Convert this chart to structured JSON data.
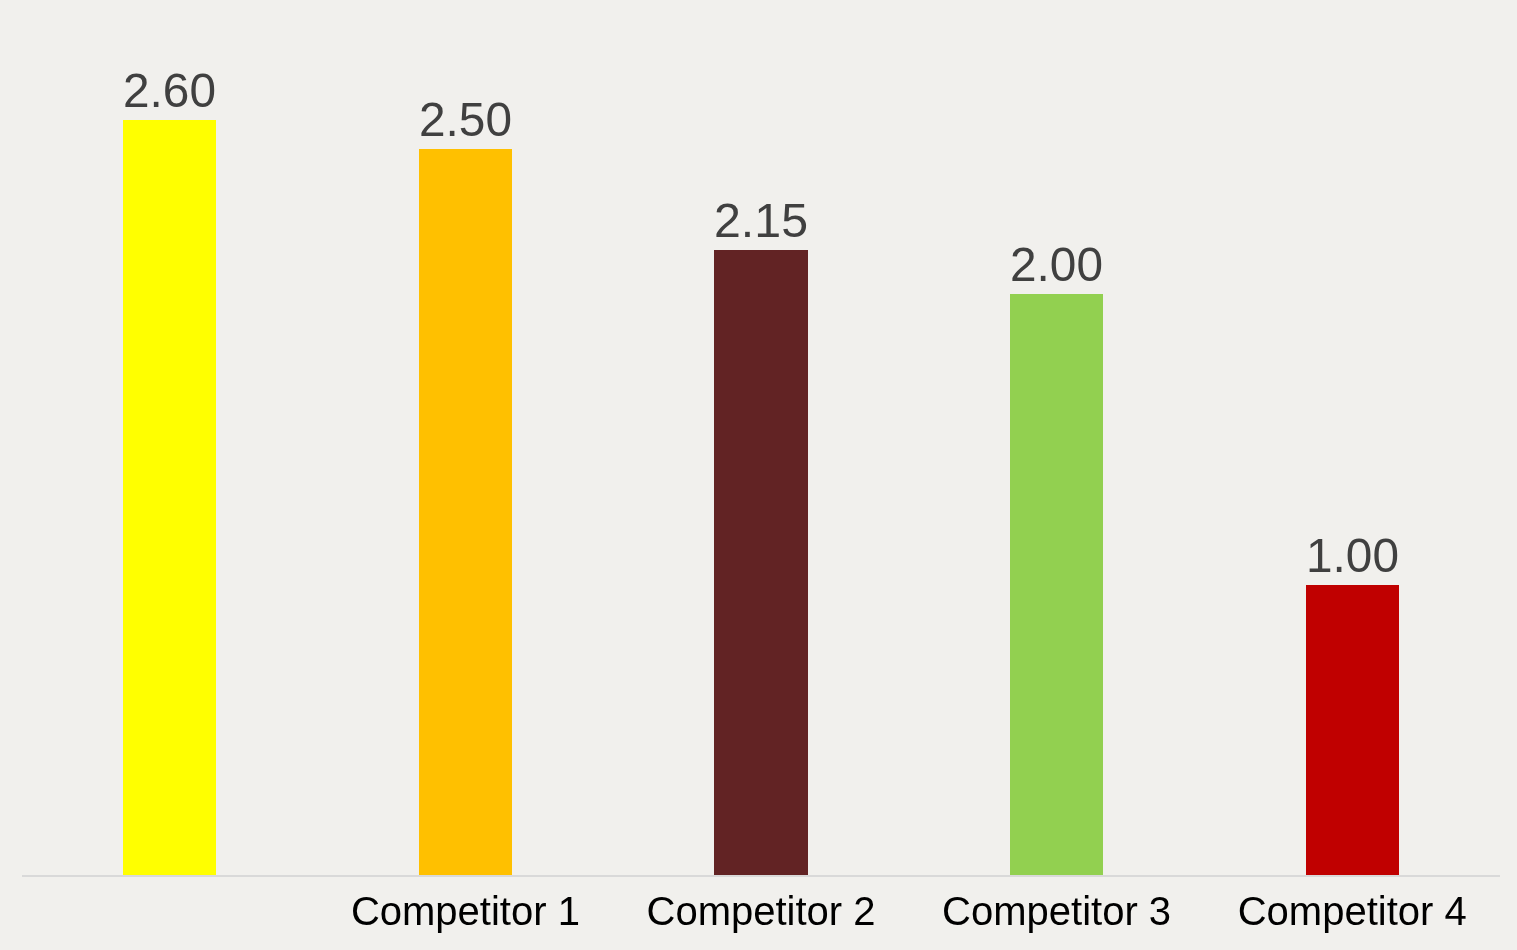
{
  "chart_data": {
    "type": "bar",
    "categories": [
      null,
      "Competitor 1",
      "Competitor 2",
      "Competitor 3",
      "Competitor 4"
    ],
    "values": [
      2.6,
      2.5,
      2.15,
      2.0,
      1.0
    ],
    "colors": [
      "#ffff00",
      "#ffc000",
      "#622324",
      "#92d050",
      "#c00000"
    ],
    "value_labels": [
      "2.60",
      "2.50",
      "2.15",
      "2.00",
      "1.00"
    ]
  }
}
